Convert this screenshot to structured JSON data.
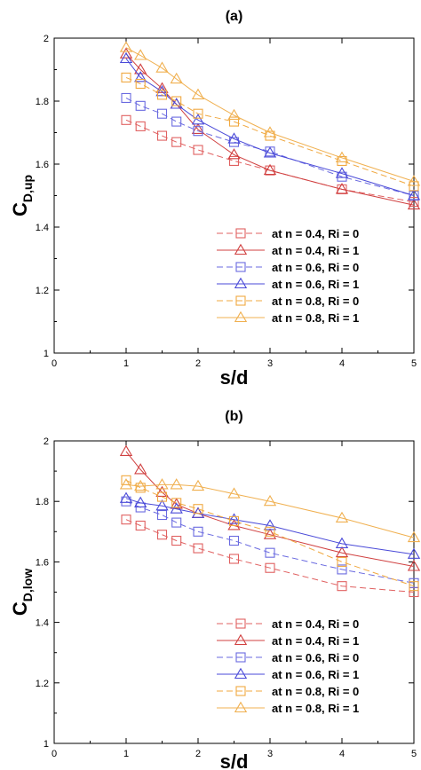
{
  "chart_data": [
    {
      "type": "line",
      "panel_label": "(a)",
      "ylabel_main": "C",
      "ylabel_sub": "D,up",
      "xlabel": "s/d",
      "xlim": [
        0,
        5
      ],
      "ylim": [
        1,
        2
      ],
      "xticks": [
        "0",
        "1",
        "2",
        "3",
        "4",
        "5"
      ],
      "yticks": [
        "1",
        "1.2",
        "1.4",
        "1.6",
        "1.8",
        "2"
      ],
      "grid": false,
      "legend_position": "bottom-right",
      "series": [
        {
          "name": "at n = 0.4, Ri = 0",
          "color": "#e06060",
          "marker": "square",
          "dash": true,
          "x": [
            1,
            1.2,
            1.5,
            1.7,
            2,
            2.5,
            3,
            4,
            5
          ],
          "y": [
            1.74,
            1.72,
            1.69,
            1.67,
            1.645,
            1.61,
            1.58,
            1.52,
            1.48
          ]
        },
        {
          "name": "at n = 0.4, Ri = 1",
          "color": "#d04040",
          "marker": "triangle",
          "dash": false,
          "x": [
            1,
            1.2,
            1.5,
            1.7,
            2,
            2.5,
            3,
            4,
            5
          ],
          "y": [
            1.95,
            1.9,
            1.84,
            1.79,
            1.71,
            1.63,
            1.58,
            1.52,
            1.47
          ]
        },
        {
          "name": "at n = 0.6, Ri = 0",
          "color": "#6a6ae0",
          "marker": "square",
          "dash": true,
          "x": [
            1,
            1.2,
            1.5,
            1.7,
            2,
            2.5,
            3,
            4,
            5
          ],
          "y": [
            1.81,
            1.785,
            1.76,
            1.735,
            1.705,
            1.67,
            1.64,
            1.56,
            1.5
          ]
        },
        {
          "name": "at n = 0.6, Ri = 1",
          "color": "#4a4ad8",
          "marker": "triangle",
          "dash": false,
          "x": [
            1,
            1.2,
            1.5,
            1.7,
            2,
            2.5,
            3,
            4,
            5
          ],
          "y": [
            1.935,
            1.875,
            1.83,
            1.79,
            1.74,
            1.68,
            1.635,
            1.57,
            1.5
          ]
        },
        {
          "name": "at n = 0.8, Ri = 0",
          "color": "#f0a840",
          "marker": "square",
          "dash": true,
          "x": [
            1,
            1.2,
            1.5,
            1.7,
            2,
            2.5,
            3,
            4,
            5
          ],
          "y": [
            1.875,
            1.855,
            1.82,
            1.8,
            1.76,
            1.735,
            1.69,
            1.61,
            1.53
          ]
        },
        {
          "name": "at n = 0.8, Ri = 1",
          "color": "#f0b050",
          "marker": "triangle",
          "dash": false,
          "x": [
            1,
            1.2,
            1.5,
            1.7,
            2,
            2.5,
            3,
            4,
            5
          ],
          "y": [
            1.97,
            1.945,
            1.905,
            1.87,
            1.82,
            1.755,
            1.7,
            1.62,
            1.545
          ]
        }
      ]
    },
    {
      "type": "line",
      "panel_label": "(b)",
      "ylabel_main": "C",
      "ylabel_sub": "D,low",
      "xlabel": "s/d",
      "xlim": [
        0,
        5
      ],
      "ylim": [
        1,
        2
      ],
      "xticks": [
        "0",
        "1",
        "2",
        "3",
        "4",
        "5"
      ],
      "yticks": [
        "1",
        "1.2",
        "1.4",
        "1.6",
        "1.8",
        "2"
      ],
      "grid": false,
      "legend_position": "bottom-right",
      "series": [
        {
          "name": "at n = 0.4, Ri = 0",
          "color": "#e06060",
          "marker": "square",
          "dash": true,
          "x": [
            1,
            1.2,
            1.5,
            1.7,
            2,
            2.5,
            3,
            4,
            5
          ],
          "y": [
            1.74,
            1.72,
            1.69,
            1.67,
            1.645,
            1.61,
            1.58,
            1.52,
            1.5
          ]
        },
        {
          "name": "at n = 0.4, Ri = 1",
          "color": "#d04040",
          "marker": "triangle",
          "dash": false,
          "x": [
            1,
            1.2,
            1.5,
            1.7,
            2,
            2.5,
            3,
            4,
            5
          ],
          "y": [
            1.965,
            1.905,
            1.83,
            1.79,
            1.76,
            1.72,
            1.69,
            1.63,
            1.585
          ]
        },
        {
          "name": "at n = 0.6, Ri = 0",
          "color": "#6a6ae0",
          "marker": "square",
          "dash": true,
          "x": [
            1,
            1.2,
            1.5,
            1.7,
            2,
            2.5,
            3,
            4,
            5
          ],
          "y": [
            1.8,
            1.78,
            1.755,
            1.73,
            1.7,
            1.67,
            1.63,
            1.575,
            1.53
          ]
        },
        {
          "name": "at n = 0.6, Ri = 1",
          "color": "#4a4ad8",
          "marker": "triangle",
          "dash": false,
          "x": [
            1,
            1.2,
            1.5,
            1.7,
            2,
            2.5,
            3,
            4,
            5
          ],
          "y": [
            1.81,
            1.795,
            1.785,
            1.775,
            1.76,
            1.74,
            1.72,
            1.66,
            1.625
          ]
        },
        {
          "name": "at n = 0.8, Ri = 0",
          "color": "#f0a840",
          "marker": "square",
          "dash": true,
          "x": [
            1,
            1.2,
            1.5,
            1.7,
            2,
            2.5,
            3,
            4,
            5
          ],
          "y": [
            1.87,
            1.845,
            1.815,
            1.795,
            1.775,
            1.735,
            1.7,
            1.6,
            1.52
          ]
        },
        {
          "name": "at n = 0.8, Ri = 1",
          "color": "#f0b050",
          "marker": "triangle",
          "dash": false,
          "x": [
            1,
            1.2,
            1.5,
            1.7,
            2,
            2.5,
            3,
            4,
            5
          ],
          "y": [
            1.855,
            1.85,
            1.855,
            1.855,
            1.85,
            1.825,
            1.8,
            1.745,
            1.68
          ]
        }
      ]
    }
  ]
}
